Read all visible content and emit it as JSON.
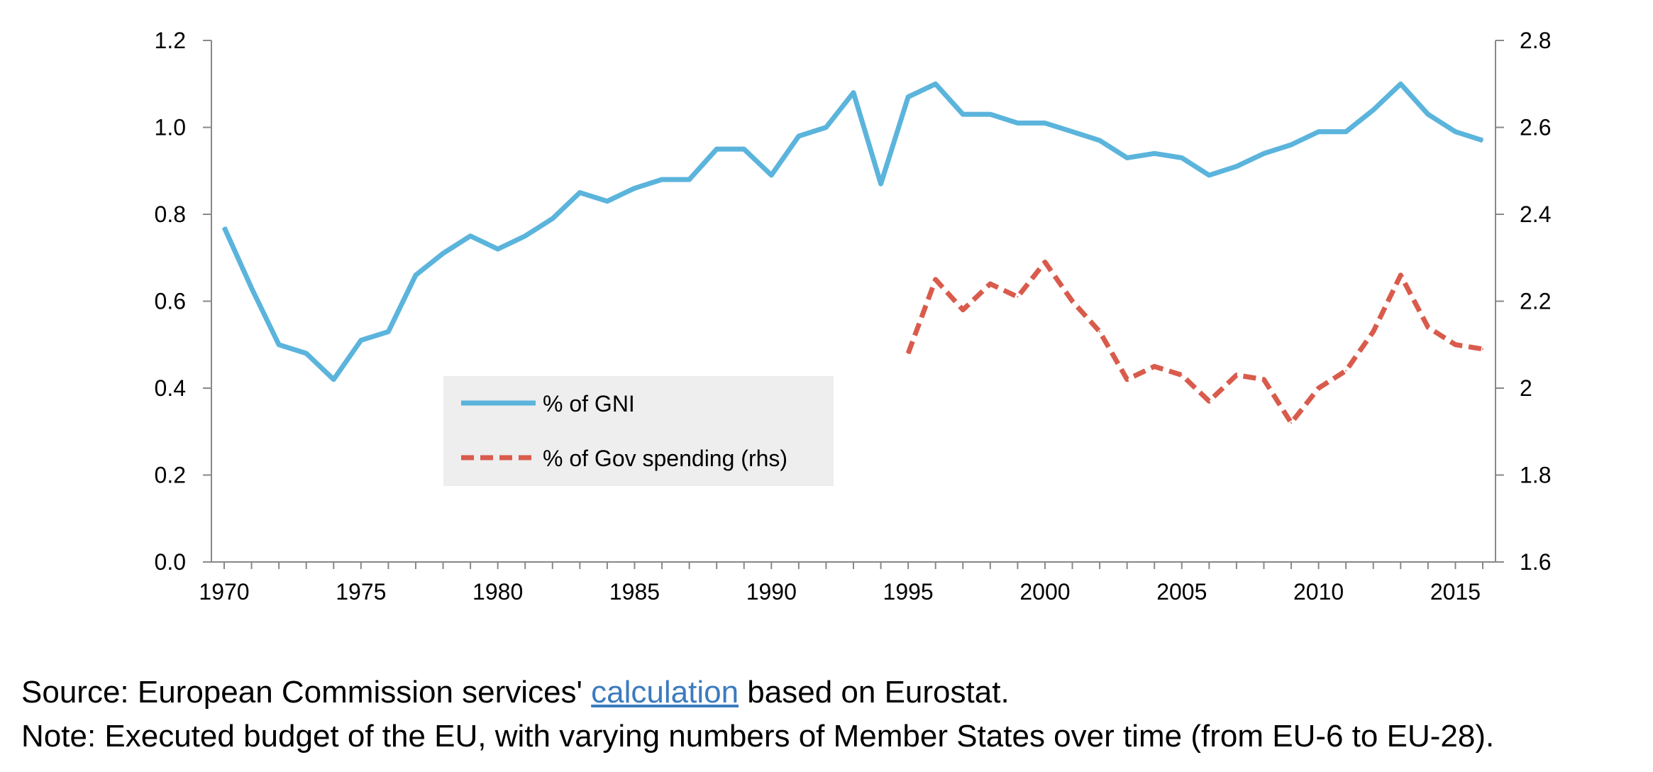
{
  "chart_data": {
    "type": "line",
    "title": "",
    "xlabel": "",
    "ylabel": "",
    "xlim": [
      1970,
      2016
    ],
    "ylim_left": [
      0.0,
      1.2
    ],
    "ylim_right": [
      1.6,
      2.8
    ],
    "x_ticks": [
      1970,
      1975,
      1980,
      1985,
      1990,
      1995,
      2000,
      2005,
      2010,
      2015
    ],
    "y_left_ticks": [
      "0.0",
      "0.2",
      "0.4",
      "0.6",
      "0.8",
      "1.0",
      "1.2"
    ],
    "y_right_ticks": [
      "1.6",
      "1.8",
      "2",
      "2.2",
      "2.4",
      "2.6",
      "2.8"
    ],
    "grid": false,
    "legend_position": "center-left",
    "series": [
      {
        "name": "% of GNI",
        "axis": "left",
        "color": "#5bb4dc",
        "style": "solid",
        "x": [
          1970,
          1971,
          1972,
          1973,
          1974,
          1975,
          1976,
          1977,
          1978,
          1979,
          1980,
          1981,
          1982,
          1983,
          1984,
          1985,
          1986,
          1987,
          1988,
          1989,
          1990,
          1991,
          1992,
          1993,
          1994,
          1995,
          1996,
          1997,
          1998,
          1999,
          2000,
          2001,
          2002,
          2003,
          2004,
          2005,
          2006,
          2007,
          2008,
          2009,
          2010,
          2011,
          2012,
          2013,
          2014,
          2015,
          2016
        ],
        "values": [
          0.77,
          0.63,
          0.5,
          0.48,
          0.42,
          0.51,
          0.53,
          0.66,
          0.71,
          0.75,
          0.72,
          0.75,
          0.79,
          0.85,
          0.83,
          0.86,
          0.88,
          0.88,
          0.95,
          0.95,
          0.89,
          0.98,
          1.0,
          1.08,
          0.87,
          1.07,
          1.1,
          1.03,
          1.03,
          1.01,
          1.01,
          0.99,
          0.97,
          0.93,
          0.94,
          0.93,
          0.89,
          0.91,
          0.94,
          0.96,
          0.99,
          0.99,
          1.04,
          1.1,
          1.03,
          0.99,
          0.97
        ]
      },
      {
        "name": "% of Gov spending (rhs)",
        "axis": "right",
        "color": "#d95b4c",
        "style": "dashed",
        "x": [
          1995,
          1996,
          1997,
          1998,
          1999,
          2000,
          2001,
          2002,
          2003,
          2004,
          2005,
          2006,
          2007,
          2008,
          2009,
          2010,
          2011,
          2012,
          2013,
          2014,
          2015,
          2016
        ],
        "values": [
          2.08,
          2.25,
          2.18,
          2.24,
          2.21,
          2.29,
          2.2,
          2.13,
          2.02,
          2.05,
          2.03,
          1.97,
          2.03,
          2.02,
          1.92,
          2.0,
          2.04,
          2.13,
          2.26,
          2.14,
          2.1,
          2.09
        ]
      }
    ]
  },
  "notes": {
    "source_prefix": "Source: European Commission services' ",
    "source_link": "calculation",
    "source_suffix": " based on Eurostat.",
    "note": "Note: Executed budget of the EU, with varying numbers of Member States over time (from EU-6 to EU-28)."
  }
}
